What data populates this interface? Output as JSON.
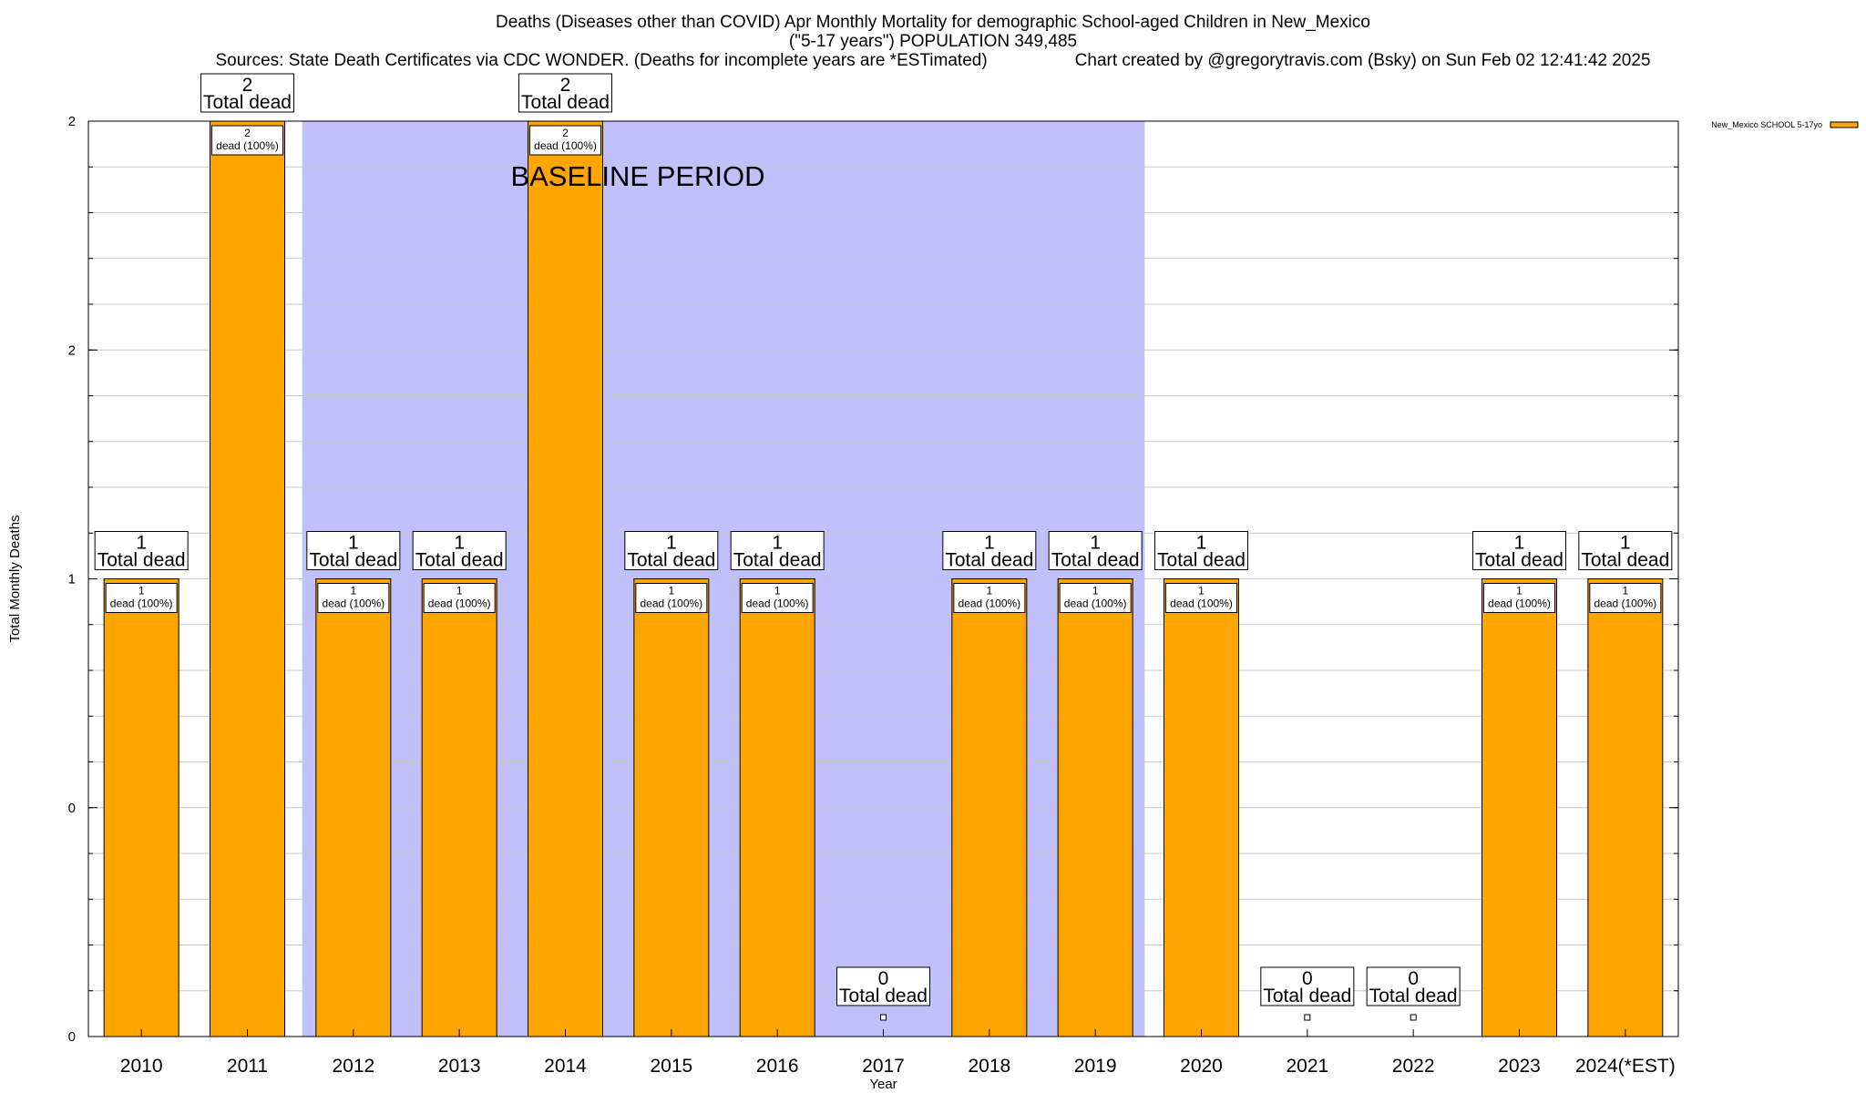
{
  "header": {
    "title_line1": "Deaths (Diseases other than COVID) Apr Monthly Mortality for demographic School-aged Children in New_Mexico",
    "title_line2": "(\"5-17 years\") POPULATION 349,485",
    "title_line3_left": "Sources: State Death Certificates via CDC WONDER. (Deaths for incomplete years are *ESTimated)",
    "title_line3_right": "Chart created by @gregorytravis.com (Bsky) on Sun Feb 02 12:41:42 2025"
  },
  "chart_data": {
    "type": "bar",
    "xlabel": "Year",
    "ylabel": "Total Monthly Deaths",
    "ylim": [
      0,
      2
    ],
    "y_tick_labels": [
      "0",
      "0",
      "1",
      "2",
      "2"
    ],
    "categories": [
      "2010",
      "2011",
      "2012",
      "2013",
      "2014",
      "2015",
      "2016",
      "2017",
      "2018",
      "2019",
      "2020",
      "2021",
      "2022",
      "2023",
      "2024(*EST)"
    ],
    "series": [
      {
        "name": "New_Mexico SCHOOL 5-17yo",
        "color": "#ffa500",
        "values": [
          1,
          2,
          1,
          1,
          2,
          1,
          1,
          0,
          1,
          1,
          1,
          0,
          0,
          1,
          1
        ]
      }
    ],
    "total_label_text": "Total dead",
    "segment_label_text": "dead (100%)",
    "baseline": {
      "label": "BASELINE PERIOD",
      "from_category": "2012",
      "to_category": "2019",
      "color": "#c0c0fc"
    },
    "grid": true,
    "legend_position": "top-right"
  }
}
